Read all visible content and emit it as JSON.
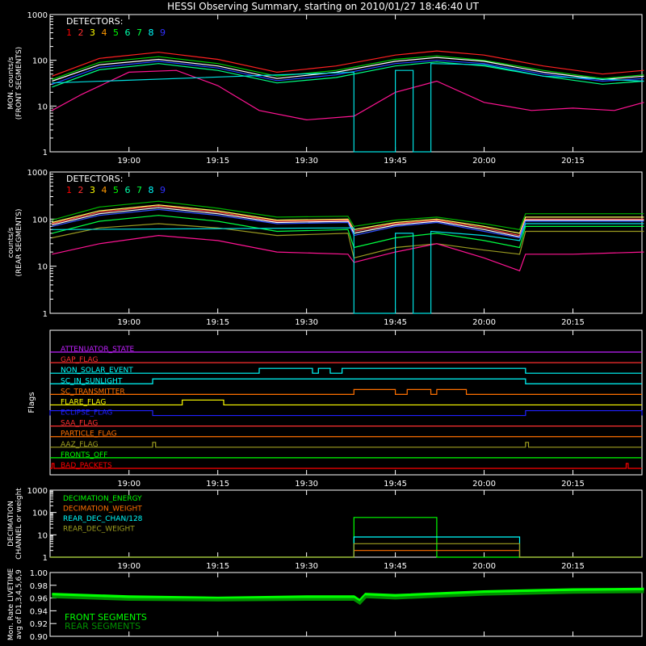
{
  "title": "HESSI Observing Summary, starting on 2010/01/27 18:46:40 UT",
  "time_ticks": [
    "19:00",
    "19:15",
    "19:30",
    "19:45",
    "20:00",
    "20:15"
  ],
  "detector_colors": [
    "#ff0000",
    "#ff4500",
    "#ffd700",
    "#ffff66",
    "#32cd32",
    "#00ff66",
    "#00bfff",
    "#2020ff",
    "#c000ff"
  ],
  "chart_data": [
    {
      "type": "line",
      "name": "front",
      "ylabel_lines": [
        "MON. counts/s",
        "(FRONT SEGMENTS)"
      ],
      "legend_title": "DETECTORS:",
      "legend_numbers": [
        "1",
        "2",
        "3",
        "4",
        "5",
        "6",
        "7",
        "8",
        "9"
      ],
      "legend_colors": [
        "#ff0000",
        "#ff3030",
        "#ffff00",
        "#ff9900",
        "#00ff00",
        "#00ffaa",
        "#00ff40",
        "#00ffff",
        "#3030ff"
      ],
      "yscale": "log",
      "ylim": [
        1,
        1000
      ],
      "ytick_labels": [
        "1",
        "10",
        "100",
        "1000"
      ],
      "x_range": [
        "18:46:40",
        "20:26:40"
      ],
      "series": [
        {
          "color": "#ff2020",
          "x": [
            "18:47",
            "18:55",
            "19:05",
            "19:15",
            "19:25",
            "19:35",
            "19:45",
            "19:52",
            "20:00",
            "20:10",
            "20:20",
            "20:27"
          ],
          "y": [
            45,
            110,
            150,
            105,
            55,
            75,
            130,
            160,
            130,
            75,
            50,
            60
          ]
        },
        {
          "color": "#00cc00",
          "x": [
            "18:47",
            "18:55",
            "19:05",
            "19:15",
            "19:25",
            "19:35",
            "19:45",
            "19:52",
            "20:00",
            "20:10",
            "20:20",
            "20:27"
          ],
          "y": [
            38,
            90,
            120,
            85,
            45,
            60,
            105,
            125,
            100,
            60,
            40,
            48
          ]
        },
        {
          "color": "#ffffff",
          "x": [
            "18:47",
            "18:55",
            "19:05",
            "19:15",
            "19:25",
            "19:35",
            "19:45",
            "19:52",
            "20:00",
            "20:10",
            "20:20",
            "20:27"
          ],
          "y": [
            35,
            80,
            105,
            75,
            40,
            55,
            95,
            115,
            95,
            55,
            38,
            45
          ]
        },
        {
          "color": "#2040ff",
          "x": [
            "18:47",
            "18:55",
            "19:05",
            "19:15",
            "19:25",
            "19:35",
            "19:45",
            "19:52",
            "20:00",
            "20:10",
            "20:20",
            "20:27"
          ],
          "y": [
            30,
            70,
            95,
            68,
            36,
            48,
            85,
            100,
            85,
            50,
            35,
            40
          ]
        },
        {
          "color": "#00ff80",
          "x": [
            "18:47",
            "18:55",
            "19:05",
            "19:15",
            "19:25",
            "19:35",
            "19:45",
            "19:52",
            "20:00",
            "20:10",
            "20:20",
            "20:27"
          ],
          "y": [
            26,
            62,
            85,
            60,
            32,
            42,
            75,
            92,
            75,
            45,
            30,
            35
          ]
        },
        {
          "color": "#ff1493",
          "x": [
            "18:47",
            "18:52",
            "19:00",
            "19:08",
            "19:15",
            "19:22",
            "19:30",
            "19:38",
            "19:45",
            "19:52",
            "20:00",
            "20:08",
            "20:15",
            "20:22",
            "20:27"
          ],
          "y": [
            8,
            18,
            55,
            60,
            28,
            8,
            5,
            6,
            20,
            35,
            12,
            8,
            9,
            8,
            12
          ]
        },
        {
          "color": "#00e0e0",
          "x": [
            "18:47",
            "19:38",
            "19:38",
            "19:45",
            "19:45",
            "19:48",
            "19:48",
            "19:51",
            "19:51",
            "20:00",
            "20:10",
            "20:27"
          ],
          "y": [
            32,
            55,
            1,
            1,
            60,
            60,
            1,
            1,
            85,
            80,
            45,
            35
          ]
        }
      ]
    },
    {
      "type": "line",
      "name": "rear",
      "ylabel_lines": [
        "counts/s",
        "(REAR SEGMENTS)"
      ],
      "legend_title": "DETECTORS:",
      "legend_numbers": [
        "1",
        "2",
        "3",
        "4",
        "5",
        "6",
        "7",
        "8",
        "9"
      ],
      "legend_colors": [
        "#ff0000",
        "#ff3030",
        "#ffff00",
        "#ff9900",
        "#00ff00",
        "#00ffaa",
        "#00ff40",
        "#00ffff",
        "#3030ff"
      ],
      "yscale": "log",
      "ylim": [
        1,
        1000
      ],
      "ytick_labels": [
        "1",
        "10",
        "100",
        "1000"
      ],
      "x_range": [
        "18:46:40",
        "20:26:40"
      ],
      "series": [
        {
          "color": "#00b000",
          "x": [
            "18:47",
            "18:55",
            "19:05",
            "19:15",
            "19:25",
            "19:37",
            "19:38",
            "19:45",
            "19:52",
            "20:00",
            "20:06",
            "20:07",
            "20:15",
            "20:27"
          ],
          "y": [
            95,
            180,
            240,
            170,
            110,
            115,
            70,
            95,
            110,
            80,
            60,
            130,
            130,
            130
          ]
        },
        {
          "color": "#ffff60",
          "x": [
            "18:47",
            "18:55",
            "19:05",
            "19:15",
            "19:25",
            "19:37",
            "19:38",
            "19:45",
            "19:52",
            "20:00",
            "20:06",
            "20:07",
            "20:15",
            "20:27"
          ],
          "y": [
            85,
            150,
            200,
            150,
            95,
            100,
            60,
            85,
            100,
            70,
            50,
            110,
            110,
            110
          ]
        },
        {
          "color": "#ff4040",
          "x": [
            "18:47",
            "18:55",
            "19:05",
            "19:15",
            "19:25",
            "19:37",
            "19:38",
            "19:45",
            "19:52",
            "20:00",
            "20:06",
            "20:07",
            "20:15",
            "20:27"
          ],
          "y": [
            80,
            140,
            190,
            140,
            90,
            95,
            55,
            80,
            95,
            65,
            45,
            100,
            100,
            100
          ]
        },
        {
          "color": "#ffffff",
          "x": [
            "18:47",
            "18:55",
            "19:05",
            "19:15",
            "19:25",
            "19:37",
            "19:38",
            "19:45",
            "19:52",
            "20:00",
            "20:06",
            "20:07",
            "20:15",
            "20:27"
          ],
          "y": [
            75,
            130,
            175,
            130,
            85,
            90,
            50,
            75,
            90,
            60,
            42,
            95,
            95,
            95
          ]
        },
        {
          "color": "#3050ff",
          "x": [
            "18:47",
            "18:55",
            "19:05",
            "19:15",
            "19:25",
            "19:37",
            "19:38",
            "19:45",
            "19:52",
            "20:00",
            "20:06",
            "20:07",
            "20:15",
            "20:27"
          ],
          "y": [
            70,
            120,
            160,
            120,
            80,
            85,
            45,
            70,
            85,
            55,
            40,
            90,
            90,
            90
          ]
        },
        {
          "color": "#00ff40",
          "x": [
            "18:47",
            "18:55",
            "19:05",
            "19:15",
            "19:25",
            "19:37",
            "19:38",
            "19:45",
            "19:52",
            "20:00",
            "20:06",
            "20:07",
            "20:15",
            "20:27"
          ],
          "y": [
            50,
            90,
            120,
            90,
            55,
            60,
            25,
            40,
            50,
            35,
            25,
            70,
            70,
            70
          ]
        },
        {
          "color": "#9a9a20",
          "x": [
            "18:47",
            "18:55",
            "19:05",
            "19:15",
            "19:25",
            "19:37",
            "19:38",
            "19:45",
            "19:52",
            "20:00",
            "20:06",
            "20:07",
            "20:15",
            "20:27"
          ],
          "y": [
            40,
            65,
            80,
            65,
            45,
            50,
            15,
            25,
            30,
            22,
            18,
            55,
            55,
            55
          ]
        },
        {
          "color": "#ff1493",
          "x": [
            "18:47",
            "18:55",
            "19:05",
            "19:15",
            "19:25",
            "19:37",
            "19:38",
            "19:45",
            "19:52",
            "20:00",
            "20:06",
            "20:07",
            "20:15",
            "20:27"
          ],
          "y": [
            18,
            30,
            45,
            35,
            20,
            18,
            12,
            20,
            30,
            15,
            8,
            18,
            18,
            20
          ]
        },
        {
          "color": "#00e0e0",
          "x": [
            "18:47",
            "19:38",
            "19:38",
            "19:45",
            "19:45",
            "19:48",
            "19:48",
            "19:51",
            "19:51",
            "20:00",
            "20:06",
            "20:07",
            "20:27"
          ],
          "y": [
            60,
            65,
            1,
            1,
            50,
            50,
            1,
            1,
            55,
            45,
            35,
            80,
            80
          ]
        }
      ]
    },
    {
      "type": "step",
      "name": "flags",
      "ylabel": "Flags",
      "x_range": [
        "18:46:40",
        "20:26:40"
      ],
      "flags": [
        {
          "label": "ATTENUATOR_STATE",
          "color": "#c020ff",
          "segments": []
        },
        {
          "label": "GAP_FLAG",
          "color": "#ff3030",
          "segments": []
        },
        {
          "label": "NON_SOLAR_EVENT",
          "color": "#00ffff",
          "segments": [
            [
              "19:22",
              "19:31"
            ],
            [
              "19:32",
              "19:34"
            ],
            [
              "19:36",
              "20:07"
            ]
          ]
        },
        {
          "label": "SC_IN_SUNLIGHT",
          "color": "#00ffff",
          "segments": [
            [
              "19:04",
              "20:07"
            ]
          ]
        },
        {
          "label": "SC_TRANSMITTER",
          "color": "#ff7000",
          "segments": [
            [
              "19:38",
              "19:45"
            ],
            [
              "19:47",
              "19:51"
            ],
            [
              "19:52",
              "19:57"
            ]
          ]
        },
        {
          "label": "FLARE_FLAG",
          "color": "#ffff00",
          "segments": [
            [
              "19:09",
              "19:16"
            ]
          ]
        },
        {
          "label": "ECLIPSE_FLAG",
          "color": "#2020ff",
          "segments": [
            [
              "18:46:40",
              "19:04"
            ],
            [
              "20:07",
              "20:26:40"
            ]
          ]
        },
        {
          "label": "SAA_FLAG",
          "color": "#ff3030",
          "segments": []
        },
        {
          "label": "PARTICLE_FLAG",
          "color": "#ff7000",
          "segments": []
        },
        {
          "label": "AAZ_FLAG",
          "color": "#a0a020",
          "segments": [
            [
              "19:04",
              "19:04:30"
            ],
            [
              "20:07",
              "20:07:30"
            ]
          ]
        },
        {
          "label": "FRONTS_OFF",
          "color": "#00ff00",
          "segments": []
        },
        {
          "label": "BAD_PACKETS",
          "color": "#ff0000",
          "segments": [
            [
              "18:47",
              "18:47:20"
            ],
            [
              "20:24",
              "20:24:20"
            ]
          ]
        }
      ]
    },
    {
      "type": "step",
      "name": "decimation",
      "ylabel_lines": [
        "DECIMATION",
        "CHANNEL or weight"
      ],
      "yscale": "log",
      "ylim": [
        1,
        1000
      ],
      "ytick_labels": [
        "1",
        "10",
        "100",
        "1000"
      ],
      "x_range": [
        "18:46:40",
        "20:26:40"
      ],
      "series": [
        {
          "name": "DECIMATION_ENERGY",
          "color": "#00ff00",
          "x": [
            "18:46:40",
            "19:38",
            "19:38",
            "19:52",
            "19:52",
            "20:26:40"
          ],
          "y": [
            1,
            1,
            60,
            60,
            1,
            1
          ]
        },
        {
          "name": "DECIMATION_WEIGHT",
          "color": "#ff7000",
          "x": [
            "18:46:40",
            "19:38",
            "19:38",
            "20:06",
            "20:06",
            "20:26:40"
          ],
          "y": [
            1,
            1,
            2,
            2,
            1,
            1
          ]
        },
        {
          "name": "REAR_DEC_CHAN/128",
          "color": "#00ffff",
          "x": [
            "18:46:40",
            "19:38",
            "19:38",
            "20:06",
            "20:06",
            "20:26:40"
          ],
          "y": [
            1,
            1,
            8,
            8,
            1,
            1
          ]
        },
        {
          "name": "REAR_DEC_WEIGHT",
          "color": "#a0a020",
          "x": [
            "18:46:40",
            "19:38",
            "19:38",
            "20:06",
            "20:06",
            "20:26:40"
          ],
          "y": [
            1,
            1,
            4,
            4,
            1,
            1
          ]
        }
      ]
    },
    {
      "type": "line",
      "name": "livetime",
      "ylabel_lines": [
        "Mon. Rate LIVETIME",
        "avg of D1,3,4,5,6,9"
      ],
      "ylim": [
        0.9,
        1.0
      ],
      "ytick_labels": [
        "0.90",
        "0.92",
        "0.94",
        "0.96",
        "0.98",
        "1.00"
      ],
      "x_range": [
        "18:46:40",
        "20:26:40"
      ],
      "series": [
        {
          "name": "FRONT SEGMENTS",
          "color": "#00ff00",
          "x": [
            "18:47",
            "19:00",
            "19:15",
            "19:30",
            "19:38",
            "19:39",
            "19:40",
            "19:45",
            "20:00",
            "20:15",
            "20:27"
          ],
          "y": [
            0.966,
            0.962,
            0.96,
            0.962,
            0.962,
            0.956,
            0.966,
            0.964,
            0.97,
            0.973,
            0.974
          ]
        },
        {
          "name": "REAR SEGMENTS",
          "color": "#009000",
          "x": [
            "18:47",
            "19:00",
            "19:15",
            "19:30",
            "19:38",
            "19:39",
            "19:40",
            "19:45",
            "20:00",
            "20:15",
            "20:27"
          ],
          "y": [
            0.962,
            0.958,
            0.957,
            0.958,
            0.958,
            0.952,
            0.962,
            0.96,
            0.966,
            0.969,
            0.97
          ]
        }
      ]
    }
  ]
}
